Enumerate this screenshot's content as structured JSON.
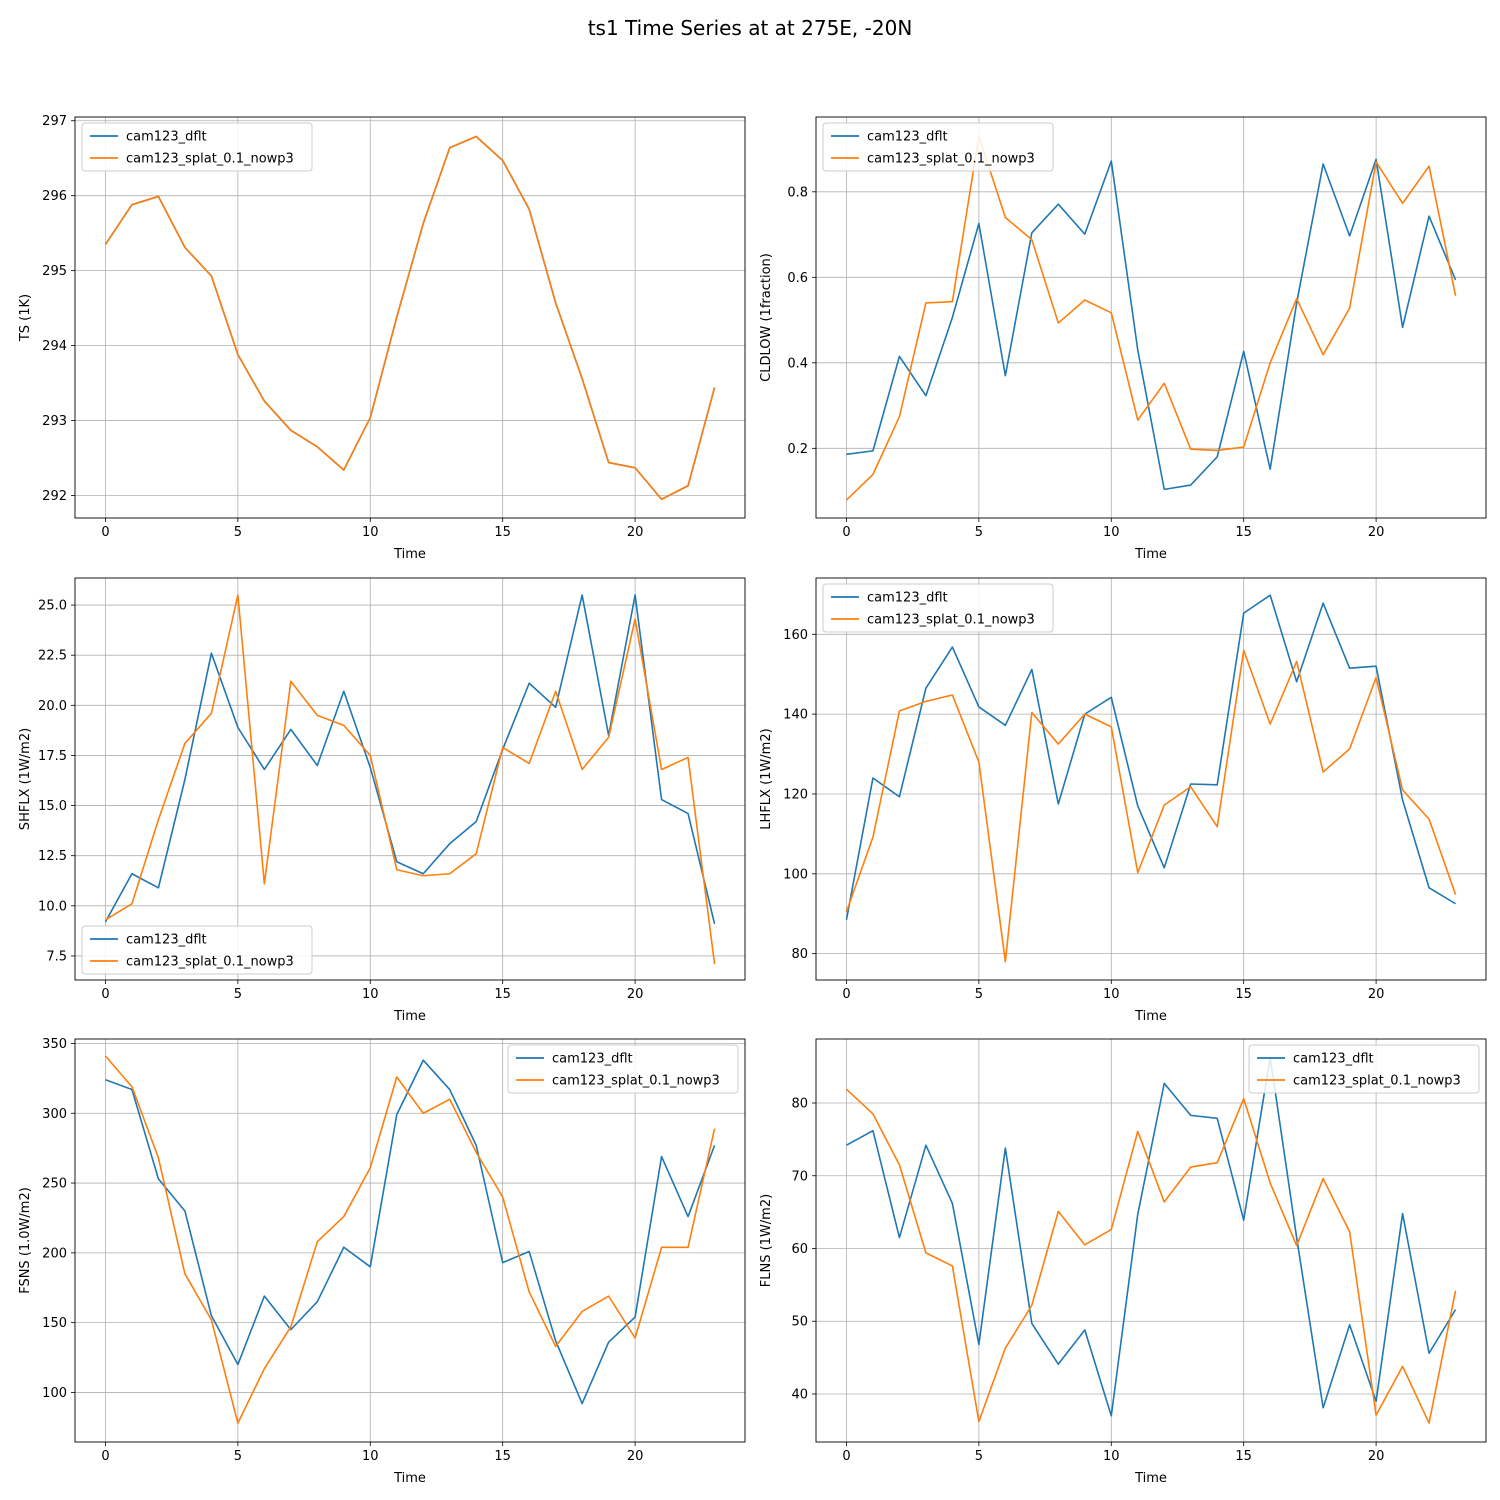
{
  "figure": {
    "title": "ts1 Time Series at at 275E, -20N"
  },
  "colors": {
    "series_1": "#1f77b4",
    "series_2": "#ff7f0e",
    "grid": "#b0b0b0"
  },
  "chart_data": [
    {
      "type": "line",
      "xlabel": "Time",
      "ylabel": "TS (1K)",
      "xlim": [
        -1.15,
        24.15
      ],
      "ylim": [
        291.7,
        297.05
      ],
      "xticks": [
        0,
        5,
        10,
        15,
        20
      ],
      "yticks": [
        292,
        293,
        294,
        295,
        296,
        297
      ],
      "ytick_labels": [
        "292",
        "293",
        "294",
        "295",
        "296",
        "297"
      ],
      "grid": true,
      "legend": "upper left",
      "x": [
        0,
        1,
        2,
        3,
        4,
        5,
        6,
        7,
        8,
        9,
        10,
        11,
        12,
        13,
        14,
        15,
        16,
        17,
        18,
        19,
        20,
        21,
        22,
        23
      ],
      "series": [
        {
          "name": "cam123_dflt",
          "color": "#1f77b4",
          "values": [
            295.35,
            295.88,
            295.99,
            295.31,
            294.93,
            293.88,
            293.26,
            292.87,
            292.65,
            292.34,
            293.04,
            294.38,
            295.63,
            296.64,
            296.79,
            296.47,
            295.82,
            294.57,
            293.56,
            292.44,
            292.37,
            291.95,
            292.13,
            293.44
          ]
        },
        {
          "name": "cam123_splat_0.1_nowp3",
          "color": "#ff7f0e",
          "values": [
            295.35,
            295.88,
            295.99,
            295.31,
            294.93,
            293.88,
            293.26,
            292.87,
            292.65,
            292.34,
            293.04,
            294.38,
            295.63,
            296.64,
            296.79,
            296.47,
            295.82,
            294.57,
            293.56,
            292.44,
            292.37,
            291.95,
            292.13,
            293.44
          ]
        }
      ]
    },
    {
      "type": "line",
      "xlabel": "Time",
      "ylabel": "CLDLOW (1fraction)",
      "xlim": [
        -1.15,
        24.15
      ],
      "ylim": [
        0.037,
        0.975
      ],
      "xticks": [
        0,
        5,
        10,
        15,
        20
      ],
      "yticks": [
        0.2,
        0.4,
        0.6,
        0.8
      ],
      "ytick_labels": [
        "0.2",
        "0.4",
        "0.6",
        "0.8"
      ],
      "grid": true,
      "legend": "upper left",
      "x": [
        0,
        1,
        2,
        3,
        4,
        5,
        6,
        7,
        8,
        9,
        10,
        11,
        12,
        13,
        14,
        15,
        16,
        17,
        18,
        19,
        20,
        21,
        22,
        23
      ],
      "series": [
        {
          "name": "cam123_dflt",
          "color": "#1f77b4",
          "values": [
            0.186,
            0.194,
            0.415,
            0.323,
            0.506,
            0.726,
            0.37,
            0.704,
            0.771,
            0.701,
            0.872,
            0.43,
            0.104,
            0.114,
            0.18,
            0.427,
            0.151,
            0.54,
            0.865,
            0.697,
            0.876,
            0.483,
            0.743,
            0.594
          ]
        },
        {
          "name": "cam123_splat_0.1_nowp3",
          "color": "#ff7f0e",
          "values": [
            0.079,
            0.139,
            0.274,
            0.54,
            0.543,
            0.93,
            0.74,
            0.688,
            0.493,
            0.547,
            0.517,
            0.266,
            0.352,
            0.198,
            0.195,
            0.203,
            0.4,
            0.55,
            0.419,
            0.528,
            0.87,
            0.773,
            0.86,
            0.557
          ]
        }
      ]
    },
    {
      "type": "line",
      "xlabel": "Time",
      "ylabel": "SHFLX (1W/m2)",
      "xlim": [
        -1.15,
        24.15
      ],
      "ylim": [
        6.3,
        26.35
      ],
      "xticks": [
        0,
        5,
        10,
        15,
        20
      ],
      "yticks": [
        7.5,
        10.0,
        12.5,
        15.0,
        17.5,
        20.0,
        22.5,
        25.0
      ],
      "ytick_labels": [
        "7.5",
        "10.0",
        "12.5",
        "15.0",
        "17.5",
        "20.0",
        "22.5",
        "25.0"
      ],
      "grid": true,
      "legend": "lower left",
      "x": [
        0,
        1,
        2,
        3,
        4,
        5,
        6,
        7,
        8,
        9,
        10,
        11,
        12,
        13,
        14,
        15,
        16,
        17,
        18,
        19,
        20,
        21,
        22,
        23
      ],
      "series": [
        {
          "name": "cam123_dflt",
          "color": "#1f77b4",
          "values": [
            9.2,
            11.6,
            10.9,
            16.3,
            22.6,
            18.9,
            16.8,
            18.8,
            17.0,
            20.7,
            16.9,
            12.2,
            11.6,
            13.1,
            14.2,
            17.8,
            21.1,
            19.9,
            25.5,
            18.5,
            25.5,
            15.3,
            14.6,
            9.1
          ]
        },
        {
          "name": "cam123_splat_0.1_nowp3",
          "color": "#ff7f0e",
          "values": [
            9.3,
            10.1,
            14.3,
            18.1,
            19.6,
            25.5,
            11.1,
            21.2,
            19.5,
            19.0,
            17.5,
            11.8,
            11.5,
            11.6,
            12.6,
            17.9,
            17.1,
            20.7,
            16.8,
            18.4,
            24.3,
            16.8,
            17.4,
            7.1
          ]
        }
      ]
    },
    {
      "type": "line",
      "xlabel": "Time",
      "ylabel": "LHFLX (1W/m2)",
      "xlim": [
        -1.15,
        24.15
      ],
      "ylim": [
        73.4,
        174.1
      ],
      "xticks": [
        0,
        5,
        10,
        15,
        20
      ],
      "yticks": [
        80,
        100,
        120,
        140,
        160
      ],
      "ytick_labels": [
        "80",
        "100",
        "120",
        "140",
        "160"
      ],
      "grid": true,
      "legend": "upper left",
      "x": [
        0,
        1,
        2,
        3,
        4,
        5,
        6,
        7,
        8,
        9,
        10,
        11,
        12,
        13,
        14,
        15,
        16,
        17,
        18,
        19,
        20,
        21,
        22,
        23
      ],
      "series": [
        {
          "name": "cam123_dflt",
          "color": "#1f77b4",
          "values": [
            88.5,
            124.0,
            119.3,
            146.5,
            156.8,
            141.8,
            137.2,
            151.2,
            117.5,
            140.0,
            144.2,
            117.0,
            101.5,
            122.5,
            122.3,
            165.3,
            169.8,
            148.1,
            167.8,
            151.5,
            152.0,
            118.5,
            96.5,
            92.5
          ]
        },
        {
          "name": "cam123_splat_0.1_nowp3",
          "color": "#ff7f0e",
          "values": [
            90.5,
            109.2,
            140.8,
            143.2,
            144.8,
            128.0,
            78.0,
            140.4,
            132.5,
            140.0,
            136.8,
            100.3,
            117.2,
            121.8,
            111.8,
            156.0,
            137.5,
            153.2,
            125.5,
            131.3,
            149.2,
            121.0,
            113.7,
            94.8
          ]
        }
      ]
    },
    {
      "type": "line",
      "xlabel": "Time",
      "ylabel": "FSNS (1.0W/m2)",
      "xlim": [
        -1.15,
        24.15
      ],
      "ylim": [
        64.5,
        353.2
      ],
      "xticks": [
        0,
        5,
        10,
        15,
        20
      ],
      "yticks": [
        100,
        150,
        200,
        250,
        300,
        350
      ],
      "ytick_labels": [
        "100",
        "150",
        "200",
        "250",
        "300",
        "350"
      ],
      "grid": true,
      "legend": "upper right",
      "x": [
        0,
        1,
        2,
        3,
        4,
        5,
        6,
        7,
        8,
        9,
        10,
        11,
        12,
        13,
        14,
        15,
        16,
        17,
        18,
        19,
        20,
        21,
        22,
        23
      ],
      "series": [
        {
          "name": "cam123_dflt",
          "color": "#1f77b4",
          "values": [
            324,
            317,
            253,
            230,
            155,
            120,
            169,
            145,
            165,
            204,
            190,
            299,
            338,
            317,
            277,
            193,
            201,
            137,
            92,
            136,
            154,
            269,
            226,
            277
          ]
        },
        {
          "name": "cam123_splat_0.1_nowp3",
          "color": "#ff7f0e",
          "values": [
            341,
            319,
            268,
            185,
            152,
            78,
            117,
            147,
            208,
            226,
            261,
            326,
            300,
            310,
            272,
            240,
            172,
            133,
            158,
            169,
            139,
            204,
            204,
            289
          ]
        }
      ]
    },
    {
      "type": "line",
      "xlabel": "Time",
      "ylabel": "FLNS (1W/m2)",
      "xlim": [
        -1.15,
        24.15
      ],
      "ylim": [
        33.4,
        88.8
      ],
      "xticks": [
        0,
        5,
        10,
        15,
        20
      ],
      "yticks": [
        40,
        50,
        60,
        70,
        80
      ],
      "ytick_labels": [
        "40",
        "50",
        "60",
        "70",
        "80"
      ],
      "grid": true,
      "legend": "upper right",
      "x": [
        0,
        1,
        2,
        3,
        4,
        5,
        6,
        7,
        8,
        9,
        10,
        11,
        12,
        13,
        14,
        15,
        16,
        17,
        18,
        19,
        20,
        21,
        22,
        23
      ],
      "series": [
        {
          "name": "cam123_dflt",
          "color": "#1f77b4",
          "values": [
            74.2,
            76.2,
            61.5,
            74.2,
            66.2,
            46.8,
            73.8,
            49.7,
            44.1,
            48.8,
            37.0,
            64.7,
            82.7,
            78.3,
            77.9,
            63.9,
            86.3,
            61.5,
            38.1,
            49.5,
            39.0,
            64.8,
            45.6,
            51.6
          ]
        },
        {
          "name": "cam123_splat_0.1_nowp3",
          "color": "#ff7f0e",
          "values": [
            81.9,
            78.5,
            71.5,
            59.4,
            57.6,
            36.2,
            46.3,
            52.2,
            65.1,
            60.5,
            62.6,
            76.1,
            66.4,
            71.2,
            71.8,
            80.6,
            69.0,
            60.4,
            69.6,
            62.3,
            37.1,
            43.8,
            36.0,
            54.2
          ]
        }
      ]
    }
  ]
}
